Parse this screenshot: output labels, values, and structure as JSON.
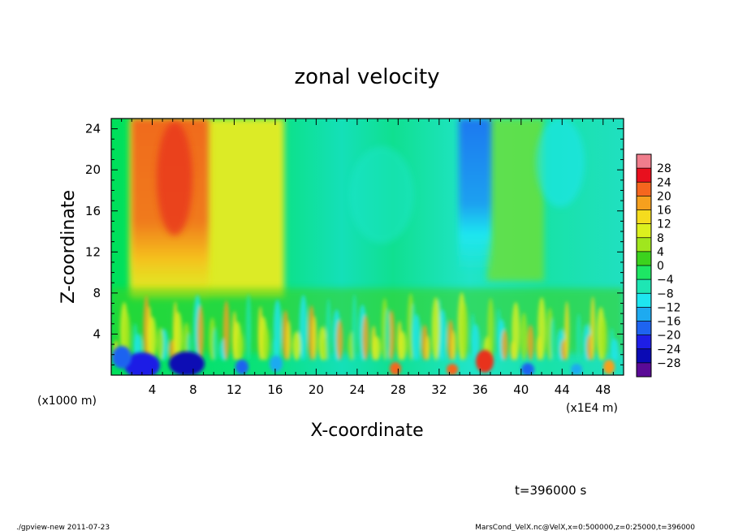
{
  "chart_data": {
    "type": "heatmap",
    "title": "zonal velocity",
    "xlabel": "X-coordinate",
    "ylabel": "Z-coordinate",
    "x_unit_left": "(x1000 m)",
    "x_unit_right": "(x1E4 m)",
    "xlim": [
      0,
      50
    ],
    "ylim": [
      0,
      25
    ],
    "x_ticks": [
      4,
      8,
      12,
      16,
      20,
      24,
      28,
      32,
      36,
      40,
      44,
      48
    ],
    "y_ticks": [
      4,
      8,
      12,
      16,
      20,
      24
    ],
    "colorbar": {
      "levels": [
        28,
        24,
        20,
        16,
        12,
        8,
        4,
        0,
        -4,
        -8,
        -12,
        -16,
        -20,
        -24,
        -28
      ],
      "colors": [
        "#f07d8c",
        "#e8101e",
        "#f5661e",
        "#f5a01e",
        "#f5dc1e",
        "#dcf01e",
        "#a0e61e",
        "#3cd21e",
        "#1ee664",
        "#1ee6b4",
        "#1ee6f0",
        "#1eaaf0",
        "#1e64f0",
        "#1e1ee6",
        "#0a0ab4",
        "#5a0a96"
      ]
    },
    "annotation": "t=396000 s"
  },
  "footer": {
    "left": "./gpview-new   2011-07-23",
    "right": "MarsCond_VelX.nc@VelX,x=0:500000,z=0:25000,t=396000"
  }
}
